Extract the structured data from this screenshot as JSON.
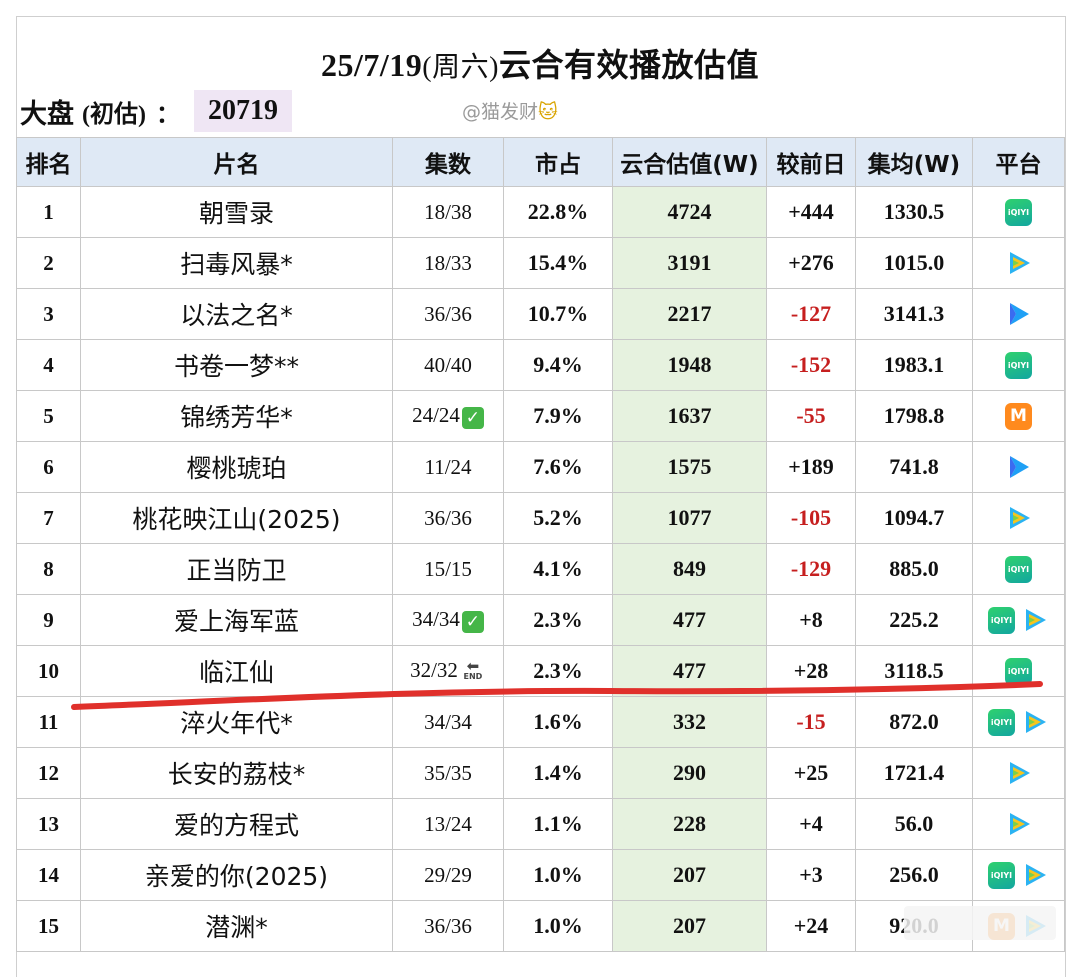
{
  "title": {
    "main": "25/7/19",
    "paren": "(周六)",
    "rest": "云合有效播放估值"
  },
  "market": {
    "label": "大盘",
    "note": "(初估)",
    "colon": "：",
    "value": "20719"
  },
  "credit": {
    "text": "@猫发财",
    "emoji": "🐱"
  },
  "headers": [
    "排名",
    "片名",
    "集数",
    "市占",
    "云合估值(W)",
    "较前日",
    "集均(W)",
    "平台"
  ],
  "rows": [
    {
      "rank": "1",
      "name": "朝雪录",
      "eps": "18/38",
      "share": "22.8%",
      "est": "4724",
      "delta": "+444",
      "avg": "1330.5",
      "platforms": [
        "iqiyi"
      ]
    },
    {
      "rank": "2",
      "name": "扫毒风暴*",
      "eps": "18/33",
      "share": "15.4%",
      "est": "3191",
      "delta": "+276",
      "avg": "1015.0",
      "platforms": [
        "tencent"
      ]
    },
    {
      "rank": "3",
      "name": "以法之名*",
      "eps": "36/36",
      "share": "10.7%",
      "est": "2217",
      "delta": "-127",
      "avg": "3141.3",
      "platforms": [
        "youku"
      ]
    },
    {
      "rank": "4",
      "name": "书卷一梦**",
      "eps": "40/40",
      "share": "9.4%",
      "est": "1948",
      "delta": "-152",
      "avg": "1983.1",
      "platforms": [
        "iqiyi"
      ]
    },
    {
      "rank": "5",
      "name": "锦绣芳华*",
      "eps": "24/24",
      "eps_badge": "check",
      "share": "7.9%",
      "est": "1637",
      "delta": "-55",
      "avg": "1798.8",
      "platforms": [
        "mango"
      ]
    },
    {
      "rank": "6",
      "name": "樱桃琥珀",
      "eps": "11/24",
      "share": "7.6%",
      "est": "1575",
      "delta": "+189",
      "avg": "741.8",
      "platforms": [
        "youku"
      ]
    },
    {
      "rank": "7",
      "name": "桃花映江山(2025)",
      "eps": "36/36",
      "share": "5.2%",
      "est": "1077",
      "delta": "-105",
      "avg": "1094.7",
      "platforms": [
        "tencent"
      ]
    },
    {
      "rank": "8",
      "name": "正当防卫",
      "eps": "15/15",
      "share": "4.1%",
      "est": "849",
      "delta": "-129",
      "avg": "885.0",
      "platforms": [
        "iqiyi"
      ]
    },
    {
      "rank": "9",
      "name": "爱上海军蓝",
      "eps": "34/34",
      "eps_badge": "check",
      "share": "2.3%",
      "est": "477",
      "delta": "+8",
      "avg": "225.2",
      "platforms": [
        "iqiyi",
        "tencent"
      ]
    },
    {
      "rank": "10",
      "name": "临江仙",
      "eps": "32/32",
      "eps_badge": "end",
      "share": "2.3%",
      "est": "477",
      "delta": "+28",
      "avg": "3118.5",
      "platforms": [
        "iqiyi"
      ]
    },
    {
      "rank": "11",
      "name": "淬火年代*",
      "eps": "34/34",
      "share": "1.6%",
      "est": "332",
      "delta": "-15",
      "avg": "872.0",
      "platforms": [
        "iqiyi",
        "tencent"
      ]
    },
    {
      "rank": "12",
      "name": "长安的荔枝*",
      "eps": "35/35",
      "share": "1.4%",
      "est": "290",
      "delta": "+25",
      "avg": "1721.4",
      "platforms": [
        "tencent"
      ]
    },
    {
      "rank": "13",
      "name": "爱的方程式",
      "eps": "13/24",
      "share": "1.1%",
      "est": "228",
      "delta": "+4",
      "avg": "56.0",
      "platforms": [
        "tencent"
      ]
    },
    {
      "rank": "14",
      "name": "亲爱的你(2025)",
      "eps": "29/29",
      "share": "1.0%",
      "est": "207",
      "delta": "+3",
      "avg": "256.0",
      "platforms": [
        "iqiyi",
        "tencent"
      ]
    },
    {
      "rank": "15",
      "name": "潜渊*",
      "eps": "36/36",
      "share": "1.0%",
      "est": "207",
      "delta": "+24",
      "avg": "920.0",
      "platforms": [
        "mango",
        "tencent"
      ]
    }
  ],
  "badges": {
    "check": "✓",
    "end_arrow": "⬅",
    "end_text": "END",
    "iqiyi": "iQIYI",
    "mango": "M"
  },
  "colors": {
    "header_bg": "#dfe9f5",
    "estimate_bg": "#e6f2df",
    "negative": "#c61f1f",
    "annotation_line": "#e0302b",
    "market_bg": "#efe6f4"
  }
}
